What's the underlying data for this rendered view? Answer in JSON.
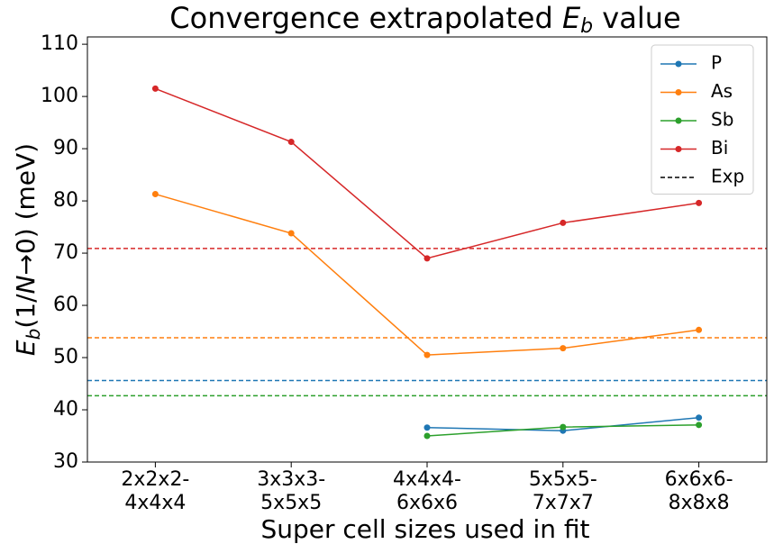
{
  "chart_data": {
    "type": "line",
    "title": [
      "Convergence extrapolated ",
      "E",
      "b",
      " value"
    ],
    "x_label": "Super cell sizes used in fit",
    "y_label": [
      "E",
      "b",
      "(1/",
      "N",
      "→0) (meV)"
    ],
    "categories": [
      [
        "2x2x2-",
        "4x4x4"
      ],
      [
        "3x3x3-",
        "5x5x5"
      ],
      [
        "4x4x4-",
        "6x6x6"
      ],
      [
        "5x5x5-",
        "7x7x7"
      ],
      [
        "6x6x6-",
        "8x8x8"
      ]
    ],
    "series": [
      {
        "name": "P",
        "color": "#1f77b4",
        "values": [
          null,
          null,
          36.6,
          36.0,
          38.5
        ],
        "exp": 45.6
      },
      {
        "name": "As",
        "color": "#ff7f0e",
        "values": [
          81.3,
          73.8,
          50.5,
          51.8,
          55.3
        ],
        "exp": 53.8
      },
      {
        "name": "Sb",
        "color": "#2ca02c",
        "values": [
          null,
          null,
          35.0,
          36.7,
          37.1
        ],
        "exp": 42.7
      },
      {
        "name": "Bi",
        "color": "#d62728",
        "values": [
          101.5,
          91.3,
          69.0,
          75.8,
          79.6
        ],
        "exp": 70.9
      }
    ],
    "reference_name": "Exp",
    "reference_color": "#000000",
    "ylim": [
      30,
      111.4
    ],
    "yticks": [
      30,
      40,
      50,
      60,
      70,
      80,
      90,
      100,
      110
    ],
    "grid": false,
    "legend": "upper right"
  }
}
